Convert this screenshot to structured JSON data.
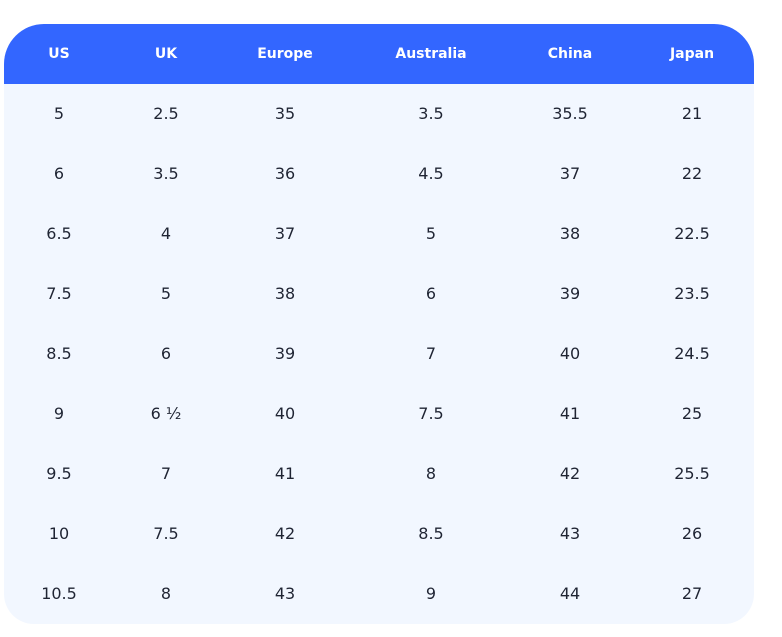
{
  "table": {
    "header": [
      "US",
      "UK",
      "Europe",
      "Australia",
      "China",
      "Japan"
    ],
    "rows": [
      [
        "5",
        "2.5",
        "35",
        "3.5",
        "35.5",
        "21"
      ],
      [
        "6",
        "3.5",
        "36",
        "4.5",
        "37",
        "22"
      ],
      [
        "6.5",
        "4",
        "37",
        "5",
        "38",
        "22.5"
      ],
      [
        "7.5",
        "5",
        "38",
        "6",
        "39",
        "23.5"
      ],
      [
        "8.5",
        "6",
        "39",
        "7",
        "40",
        "24.5"
      ],
      [
        "9",
        "6 ½",
        "40",
        "7.5",
        "41",
        "25"
      ],
      [
        "9.5",
        "7",
        "41",
        "8",
        "42",
        "25.5"
      ],
      [
        "10",
        "7.5",
        "42",
        "8.5",
        "43",
        "26"
      ],
      [
        "10.5",
        "8",
        "43",
        "9",
        "44",
        "27"
      ]
    ]
  }
}
